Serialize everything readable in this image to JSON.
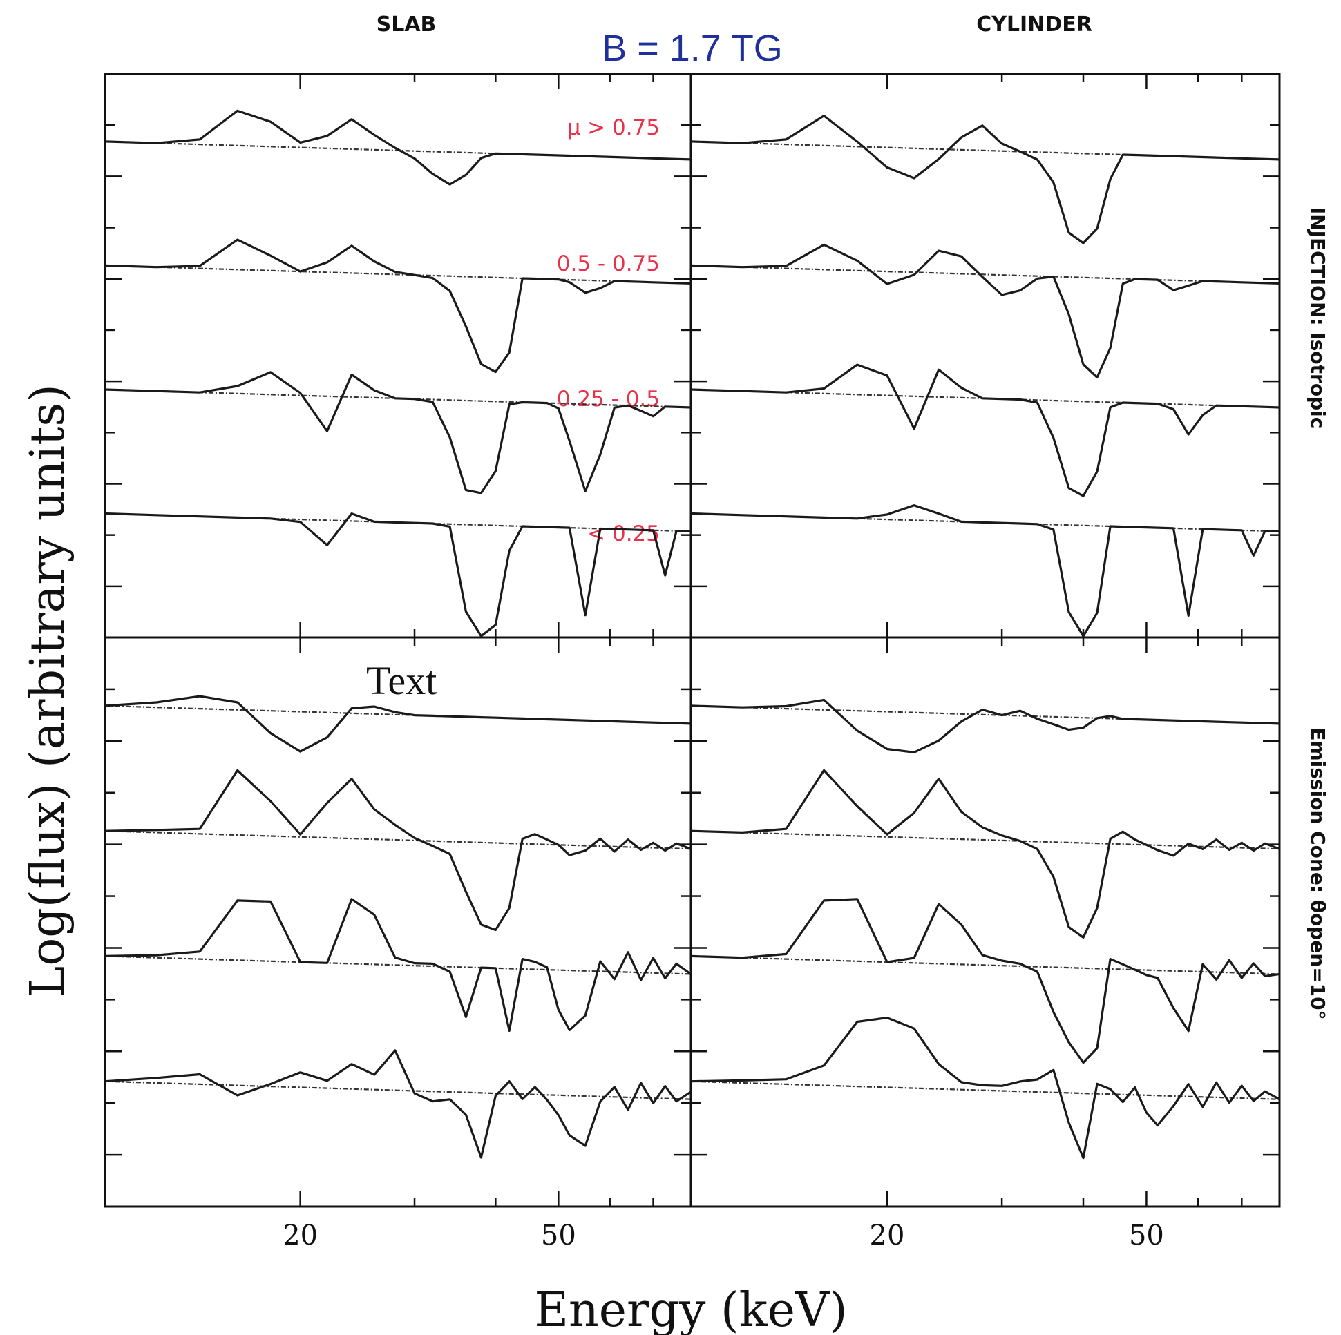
{
  "chart_data": {
    "type": "line",
    "header_left": "SLAB",
    "header_right": "CYLINDER",
    "field_label": "B = 1.7 TG",
    "xlabel": "Energy (keV)",
    "ylabel": "Log(flux) (arbitrary units)",
    "xscale": "log",
    "xlim": [
      10,
      80
    ],
    "xticks_major": [
      20,
      50
    ],
    "row_labels": [
      "INJECTION: Isotropic",
      "Emission Cone: θopen=10°"
    ],
    "mu_bins": [
      "μ > 0.75",
      "0.5 - 0.75",
      "0.25 - 0.5",
      "< 0.25"
    ],
    "annotation": "Text",
    "x": [
      10,
      12,
      14,
      16,
      18,
      20,
      22,
      24,
      26,
      28,
      30,
      32,
      34,
      36,
      38,
      40,
      42,
      44,
      46,
      48,
      50,
      52,
      55,
      58,
      61,
      64,
      67,
      70,
      73,
      76,
      80
    ],
    "panels": [
      {
        "name": "slab-injection",
        "series": [
          {
            "solid": [
              0,
              0,
              0.2,
              1.4,
              1.0,
              0.2,
              0.5,
              1.2,
              0.6,
              0.1,
              -0.3,
              -0.9,
              -1.3,
              -0.9,
              -0.2,
              0,
              0,
              0,
              0,
              0,
              0,
              0,
              0,
              0,
              0,
              0,
              0,
              0,
              0,
              0,
              0
            ]
          },
          {
            "solid": [
              0,
              0,
              0.1,
              1.2,
              0.6,
              0,
              0.4,
              1.1,
              0.5,
              0.1,
              0,
              -0.1,
              -0.6,
              -2.0,
              -3.5,
              -3.8,
              -3.0,
              0,
              0,
              0,
              0,
              -0.1,
              -0.5,
              -0.3,
              0,
              0,
              0,
              0,
              0,
              0,
              0
            ]
          },
          {
            "solid": [
              0,
              0,
              0,
              0.3,
              0.9,
              0.1,
              -1.4,
              0.9,
              0.3,
              0,
              0,
              -0.1,
              -1.5,
              -3.6,
              -3.7,
              -2.8,
              -0.1,
              0,
              0,
              0,
              -0.2,
              -1.5,
              -3.5,
              -2.0,
              -0.1,
              0,
              -0.2,
              -0.4,
              0,
              0,
              0
            ]
          },
          {
            "solid": [
              0,
              0,
              0,
              0,
              0,
              -0.1,
              -1.0,
              0.3,
              0,
              0,
              0,
              0,
              -0.1,
              -3.5,
              -4.5,
              -4.0,
              -1.0,
              0,
              0,
              0,
              0,
              0,
              -3.5,
              0,
              0,
              0,
              0,
              0,
              -1.8,
              0,
              0
            ]
          }
        ]
      },
      {
        "name": "cylinder-injection",
        "series": [
          {
            "solid": [
              0,
              0,
              0.2,
              1.2,
              0.2,
              -0.8,
              -1.2,
              -0.4,
              0.5,
              1.0,
              0.3,
              0,
              -0.3,
              -1.2,
              -3.2,
              -3.6,
              -3.0,
              -1.0,
              0,
              0,
              0,
              0,
              0,
              0,
              0,
              0,
              0,
              0,
              0,
              0,
              0
            ]
          },
          {
            "solid": [
              0,
              0,
              0.1,
              1.0,
              0.4,
              -0.5,
              -0.1,
              0.9,
              0.7,
              -0.1,
              -0.8,
              -0.6,
              -0.1,
              0,
              -1.5,
              -3.5,
              -4.0,
              -2.8,
              -0.2,
              0,
              0,
              0,
              -0.4,
              -0.2,
              0,
              0,
              0,
              0,
              0,
              0,
              0
            ]
          },
          {
            "solid": [
              0,
              0,
              0,
              0.2,
              1.2,
              0.8,
              -1.3,
              1.1,
              0.4,
              0,
              0,
              0,
              -0.1,
              -1.5,
              -3.5,
              -3.8,
              -2.8,
              -0.2,
              0,
              0,
              0,
              0,
              -0.2,
              -1.2,
              -0.4,
              0,
              0,
              0,
              0,
              0,
              0
            ]
          },
          {
            "solid": [
              0,
              0,
              0,
              0,
              0,
              0.2,
              0.6,
              0.3,
              0,
              0,
              0,
              0,
              0,
              -0.2,
              -3.5,
              -4.5,
              -3.5,
              0,
              0,
              0,
              0,
              0,
              0,
              -3.5,
              0,
              0,
              0,
              0,
              -1.0,
              0,
              0
            ]
          }
        ]
      },
      {
        "name": "slab-emission-cone",
        "series": [
          {
            "solid": [
              0,
              0.2,
              0.5,
              0.3,
              -0.9,
              -1.6,
              -1.0,
              0.2,
              0.3,
              0.1,
              0,
              0,
              0,
              0,
              0,
              0,
              0,
              0,
              0,
              0,
              0,
              0,
              0,
              0,
              0,
              0,
              0,
              0,
              0,
              0,
              0
            ]
          },
          {
            "solid": [
              0,
              0.1,
              0.2,
              2.6,
              1.4,
              0.1,
              1.4,
              2.4,
              1.2,
              0.6,
              0.1,
              -0.2,
              -0.5,
              -2.0,
              -3.3,
              -3.5,
              -2.6,
              0.2,
              0.4,
              0.2,
              0,
              -0.4,
              -0.2,
              0.3,
              -0.2,
              0.3,
              -0.1,
              0.2,
              -0.1,
              0.2,
              0
            ]
          },
          {
            "solid": [
              0,
              0.1,
              0.3,
              2.4,
              2.4,
              0,
              0,
              2.6,
              2.0,
              0.3,
              0.1,
              0.1,
              -0.2,
              -2.0,
              0,
              0,
              -2.5,
              0.4,
              0.3,
              0.1,
              -1.6,
              -2.4,
              -1.8,
              0.4,
              -0.3,
              0.8,
              -0.3,
              0.6,
              -0.2,
              0.4,
              0
            ]
          },
          {
            "solid": [
              0,
              0.2,
              0.4,
              -0.4,
              0.1,
              0.6,
              0.3,
              1.0,
              0.6,
              1.6,
              -0.1,
              -0.4,
              -0.3,
              -0.9,
              -2.6,
              -0.1,
              0.5,
              -0.2,
              0.3,
              -0.2,
              -0.8,
              -1.6,
              -2.0,
              -0.2,
              0.4,
              -0.5,
              0.6,
              -0.2,
              0.5,
              -0.1,
              0.3
            ]
          }
        ]
      },
      {
        "name": "cylinder-emission-cone",
        "series": [
          {
            "solid": [
              0,
              0,
              0.1,
              0.4,
              -0.8,
              -1.5,
              -1.6,
              -1.1,
              -0.3,
              0.2,
              0,
              0.2,
              -0.1,
              -0.3,
              -0.5,
              -0.4,
              0,
              0.1,
              0,
              0,
              0,
              0,
              0,
              0,
              0,
              0,
              0,
              0,
              0,
              0,
              0
            ]
          },
          {
            "solid": [
              0,
              0,
              0.2,
              2.6,
              1.2,
              0.1,
              1.0,
              2.4,
              1.1,
              0.5,
              0.2,
              0,
              -0.3,
              -1.4,
              -3.4,
              -3.8,
              -2.6,
              0.2,
              0.5,
              0.2,
              0,
              -0.2,
              -0.4,
              0.1,
              -0.1,
              0.3,
              -0.1,
              0.2,
              -0.1,
              0.2,
              0
            ]
          },
          {
            "solid": [
              0,
              0,
              0.2,
              2.4,
              2.5,
              0,
              0.2,
              2.4,
              1.6,
              0.4,
              0.2,
              0.1,
              -0.2,
              -1.8,
              -3.0,
              -3.8,
              -3.2,
              0.4,
              0.2,
              0,
              -0.2,
              -0.3,
              -1.5,
              -2.4,
              0.3,
              -0.3,
              0.5,
              -0.2,
              0.4,
              -0.1,
              0
            ]
          },
          {
            "solid": [
              0,
              0.1,
              0.2,
              0.8,
              2.6,
              2.8,
              2.4,
              1.0,
              0.3,
              0.2,
              0.2,
              0.4,
              0.5,
              0.9,
              -1.2,
              -2.6,
              0.4,
              0.2,
              -0.3,
              0.3,
              -0.7,
              -1.2,
              -0.4,
              0.5,
              -0.4,
              0.6,
              -0.2,
              0.5,
              -0.1,
              0.3,
              0
            ]
          }
        ]
      }
    ]
  }
}
